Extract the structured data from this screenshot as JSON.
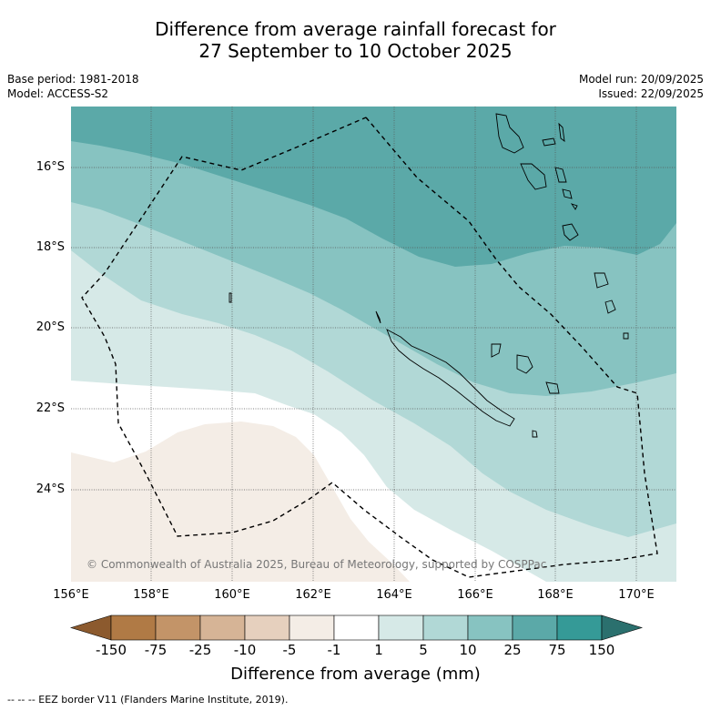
{
  "title_line1": "Difference from average rainfall forecast for",
  "title_line2": "27 September to 10 October 2025",
  "base_period": "Base period: 1981-2018",
  "model": "Model: ACCESS-S2",
  "model_run": "Model run: 20/09/2025",
  "issued": "Issued: 22/09/2025",
  "lat_labels": [
    "16°S",
    "18°S",
    "20°S",
    "22°S",
    "24°S"
  ],
  "lon_labels": [
    "156°E",
    "158°E",
    "160°E",
    "162°E",
    "164°E",
    "166°E",
    "168°E",
    "170°E"
  ],
  "copyright": "© Commonwealth of Australia 2025, Bureau of Meteorology, supported by COSPPac",
  "colorbar": {
    "labels": [
      "-150",
      "-75",
      "-25",
      "-10",
      "-5",
      "-1",
      "1",
      "5",
      "10",
      "25",
      "75",
      "150"
    ],
    "colors": [
      "#8c5a2e",
      "#b07a45",
      "#c39468",
      "#d6b496",
      "#e6d0be",
      "#f4ede6",
      "#ffffff",
      "#d6e9e7",
      "#b1d8d6",
      "#87c3c1",
      "#5ba9a8",
      "#359a97",
      "#2b706e"
    ],
    "title": "Difference from average (mm)"
  },
  "legend_note": "--  --  -- EEZ border V11 (Flanders Marine Institute, 2019)."
}
